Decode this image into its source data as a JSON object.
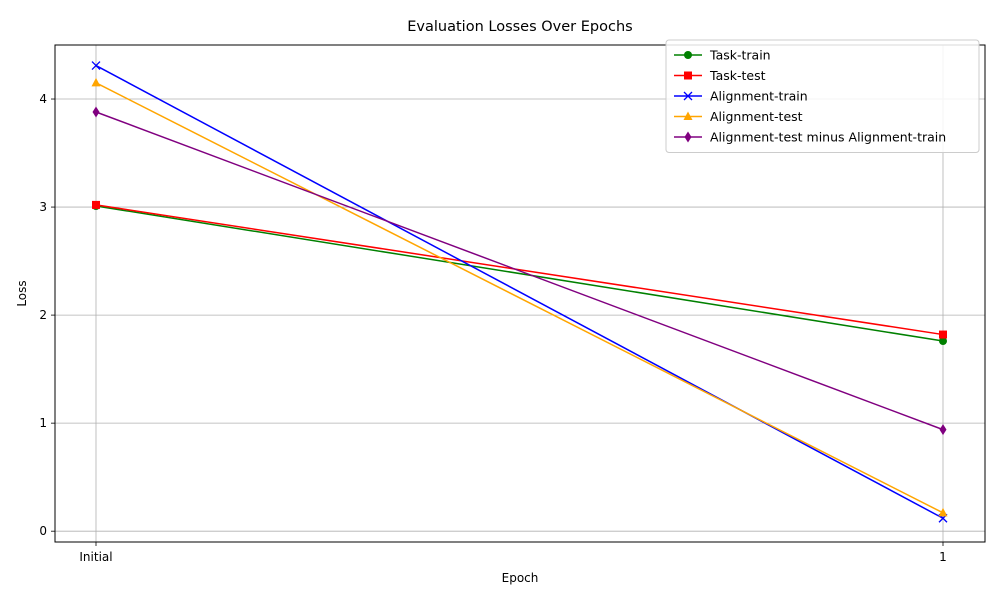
{
  "chart_data": {
    "type": "line",
    "title": "Evaluation Losses Over Epochs",
    "xlabel": "Epoch",
    "ylabel": "Loss",
    "categories": [
      "Initial",
      "1"
    ],
    "ylim": [
      -0.1,
      4.5
    ],
    "yticks": [
      "0",
      "1",
      "2",
      "3",
      "4"
    ],
    "grid": true,
    "legend_position": "top-right",
    "series": [
      {
        "name": "Task-train",
        "values": [
          3.01,
          1.76
        ],
        "color": "#008000",
        "marker": "circle"
      },
      {
        "name": "Task-test",
        "values": [
          3.02,
          1.82
        ],
        "color": "#ff0000",
        "marker": "square"
      },
      {
        "name": "Alignment-train",
        "values": [
          4.31,
          0.12
        ],
        "color": "#0000ff",
        "marker": "x"
      },
      {
        "name": "Alignment-test",
        "values": [
          4.15,
          0.17
        ],
        "color": "#ffa500",
        "marker": "triangle"
      },
      {
        "name": "Alignment-test minus Alignment-train",
        "values": [
          3.88,
          0.94
        ],
        "color": "#800080",
        "marker": "diamond"
      }
    ]
  }
}
